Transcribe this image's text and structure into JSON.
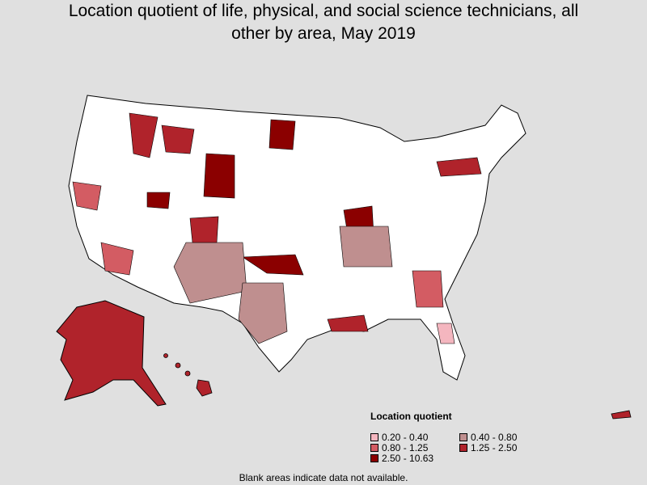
{
  "header": {
    "title": "Location quotient of life, physical, and social science technicians, all other by area, May 2019"
  },
  "legend": {
    "title": "Location quotient",
    "items": [
      {
        "label": "0.20 - 0.40",
        "color": "#f4b6bf"
      },
      {
        "label": "0.40 - 0.80",
        "color": "#bf8f8f"
      },
      {
        "label": "0.80 - 1.25",
        "color": "#d35c63"
      },
      {
        "label": "1.25 - 2.50",
        "color": "#b0232b"
      },
      {
        "label": "2.50 - 10.63",
        "color": "#8b0000"
      }
    ]
  },
  "footnote": "Blank areas indicate data not available."
}
